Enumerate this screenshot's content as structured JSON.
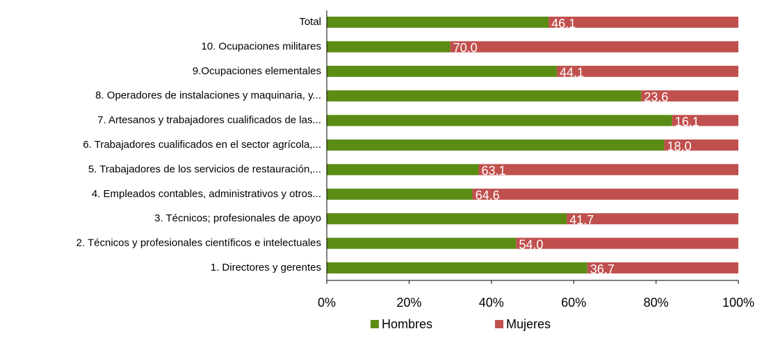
{
  "chart_data": {
    "type": "bar",
    "orientation": "horizontal",
    "stacked": true,
    "categories": [
      "Total",
      "10. Ocupaciones militares",
      "9.Ocupaciones elementales",
      "8. Operadores de instalaciones y maquinaria, y...",
      "7. Artesanos y trabajadores cualificados de las...",
      "6. Trabajadores cualificados en el sector agrícola,...",
      "5. Trabajadores de los servicios de restauración,...",
      "4. Empleados contables, administrativos y otros...",
      "3. Técnicos; profesionales de apoyo",
      "2. Técnicos y profesionales científicos e intelectuales",
      "1. Directores y gerentes"
    ],
    "series": [
      {
        "name": "Hombres",
        "color": "#5b8c14",
        "values": [
          53.9,
          30.0,
          55.9,
          76.4,
          83.9,
          82.0,
          36.9,
          35.4,
          58.3,
          46.0,
          63.3
        ]
      },
      {
        "name": "Mujeres",
        "color": "#c0504d",
        "values": [
          46.1,
          70.0,
          44.1,
          23.6,
          16.1,
          18.0,
          63.1,
          64.6,
          41.7,
          54.0,
          36.7
        ],
        "value_labels": [
          "46.1",
          "70.0",
          "44.1",
          "23.6",
          "16.1",
          "18.0",
          "63.1",
          "64.6",
          "41.7",
          "54.0",
          "36.7"
        ]
      }
    ],
    "xlim": [
      0,
      100
    ],
    "xticks": [
      {
        "value": 0,
        "label": "0%"
      },
      {
        "value": 20,
        "label": "20%"
      },
      {
        "value": 40,
        "label": "40%"
      },
      {
        "value": 60,
        "label": "60%"
      },
      {
        "value": 80,
        "label": "80%"
      },
      {
        "value": 100,
        "label": "100%"
      }
    ],
    "legend": "bottom"
  }
}
